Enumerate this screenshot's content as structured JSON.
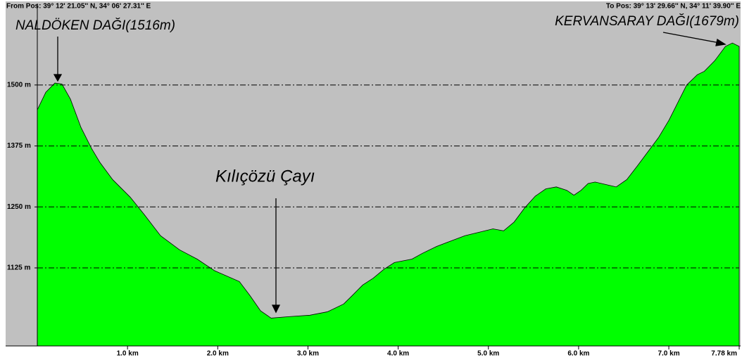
{
  "chart_data": {
    "type": "area",
    "from_pos": "From Pos: 39° 12' 21.05'' N, 34° 06' 27.31'' E",
    "to_pos": "To Pos: 39° 13' 29.66'' N, 34° 11' 39.90'' E",
    "annotations": [
      "NALDÖKEN DAĞI(1516m)",
      "Kılıçözü Çayı",
      "KERVANSARAY DAĞI(1679m)"
    ],
    "color": "#00ff00",
    "background": "#c0c0c0",
    "grid": true,
    "x": [
      0,
      0.094,
      0.195,
      0.273,
      0.367,
      0.484,
      0.601,
      0.695,
      0.835,
      1.03,
      1.187,
      1.366,
      1.577,
      1.772,
      1.967,
      2.24,
      2.358,
      2.475,
      2.592,
      2.787,
      3.021,
      3.216,
      3.396,
      3.489,
      3.607,
      3.724,
      3.841,
      3.958,
      4.153,
      4.27,
      4.426,
      4.582,
      4.739,
      4.895,
      5.051,
      5.168,
      5.285,
      5.402,
      5.519,
      5.636,
      5.753,
      5.87,
      5.948,
      6.027,
      6.105,
      6.183,
      6.3,
      6.417,
      6.534,
      6.651,
      6.768,
      6.885,
      7.002,
      7.119,
      7.198,
      7.315,
      7.393,
      7.51,
      7.627,
      7.705,
      7.78
    ],
    "y": [
      1449,
      1485,
      1504,
      1502,
      1471,
      1413,
      1370,
      1341,
      1306,
      1270,
      1234,
      1191,
      1162,
      1143,
      1119,
      1097,
      1068,
      1037,
      1022,
      1025,
      1028,
      1035,
      1051,
      1068,
      1090,
      1104,
      1122,
      1136,
      1143,
      1155,
      1169,
      1180,
      1191,
      1198,
      1205,
      1201,
      1219,
      1248,
      1272,
      1287,
      1291,
      1284,
      1274,
      1284,
      1298,
      1301,
      1296,
      1291,
      1306,
      1334,
      1363,
      1392,
      1428,
      1471,
      1500,
      1521,
      1528,
      1550,
      1579,
      1586,
      1579
    ],
    "xlim": [
      0,
      7.78
    ],
    "ylim": [
      965,
      1667
    ],
    "xticks": [
      {
        "value": 1,
        "label": "1.0 km"
      },
      {
        "value": 2,
        "label": "2.0 km"
      },
      {
        "value": 3,
        "label": "3.0 km"
      },
      {
        "value": 4,
        "label": "4.0 km"
      },
      {
        "value": 5,
        "label": "5.0 km"
      },
      {
        "value": 6,
        "label": "6.0 km"
      },
      {
        "value": 7,
        "label": "7.0 km"
      },
      {
        "value": 7.78,
        "label": "7.78 km"
      }
    ],
    "yticks": [
      {
        "value": 1125,
        "label": "1125 m"
      },
      {
        "value": 1250,
        "label": "1250 m"
      },
      {
        "value": 1375,
        "label": "1375 m"
      },
      {
        "value": 1500,
        "label": "1500 m"
      }
    ]
  }
}
